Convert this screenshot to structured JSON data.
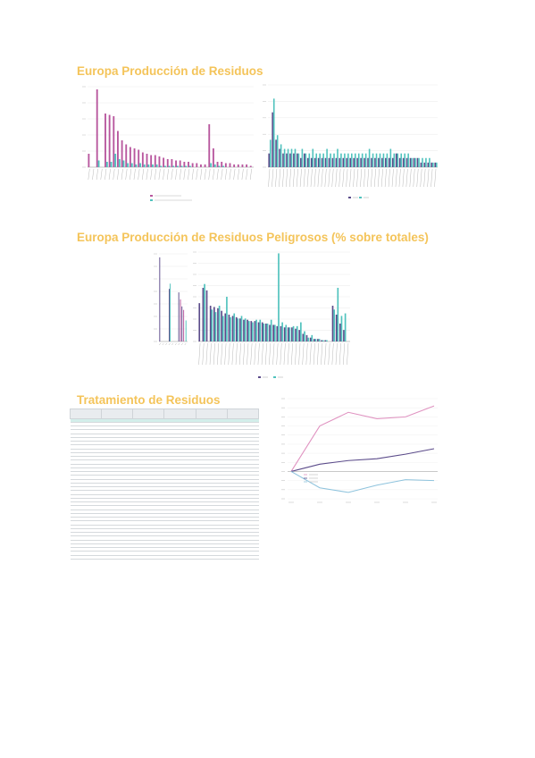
{
  "headings": {
    "h1": "Europa Producción de Residuos",
    "h2": "Europa Producción de Residuos Peligrosos (% sobre totales)",
    "h3": "Tratamiento de Residuos"
  },
  "colors": {
    "heading": "#f4c45a",
    "magenta": "#b8579e",
    "teal": "#4fc2bd",
    "purple": "#5b4b8a",
    "pink": "#e093c1",
    "blue": "#8ec3dd"
  },
  "chart_data": [
    {
      "type": "bar",
      "categories": [
        "",
        "",
        "",
        "",
        "",
        "",
        "",
        "",
        "",
        "",
        "",
        "",
        "",
        "",
        "",
        "",
        "",
        "",
        "",
        "",
        "",
        "",
        "",
        "",
        "",
        "",
        "",
        "",
        "",
        "",
        "",
        "",
        "",
        "",
        "",
        "",
        "",
        "",
        "",
        ""
      ],
      "series": [
        {
          "name": "",
          "values": [
            10,
            0,
            58,
            0,
            40,
            39,
            38,
            27,
            20,
            17,
            15,
            14,
            13,
            11,
            10,
            9,
            9,
            8,
            7,
            6,
            6,
            5,
            5,
            4,
            4,
            3,
            3,
            2,
            2,
            32,
            14,
            4,
            4,
            3,
            3,
            2,
            2,
            2,
            2,
            1
          ]
        },
        {
          "name": "",
          "values": [
            0,
            0,
            5,
            0,
            4,
            4,
            10,
            6,
            5,
            3,
            3,
            2,
            3,
            2,
            2,
            2,
            2,
            1,
            1,
            1,
            1,
            1,
            1,
            1,
            1,
            0,
            0,
            0,
            0,
            3,
            2,
            1,
            1,
            0,
            0,
            0,
            0,
            0,
            0,
            0
          ]
        }
      ],
      "legend": [
        "",
        ""
      ],
      "ylim": [
        0,
        60
      ]
    },
    {
      "type": "bar",
      "categories": [
        "",
        "",
        "",
        "",
        "",
        "",
        "",
        "",
        "",
        "",
        "",
        "",
        "",
        "",
        "",
        "",
        "",
        "",
        "",
        "",
        "",
        "",
        "",
        "",
        "",
        "",
        "",
        "",
        "",
        "",
        "",
        "",
        "",
        "",
        "",
        "",
        "",
        "",
        "",
        "",
        "",
        "",
        "",
        "",
        "",
        "",
        "",
        ""
      ],
      "series": [
        {
          "name": "",
          "values": [
            3,
            12,
            6,
            4,
            3,
            3,
            3,
            3,
            3,
            2,
            3,
            2,
            2,
            2,
            2,
            2,
            2,
            2,
            2,
            2,
            2,
            2,
            2,
            2,
            2,
            2,
            2,
            2,
            2,
            2,
            2,
            2,
            2,
            2,
            2,
            2,
            3,
            2,
            2,
            2,
            2,
            2,
            2,
            1,
            1,
            1,
            1,
            1
          ]
        },
        {
          "name": "",
          "values": [
            6,
            15,
            7,
            5,
            4,
            4,
            4,
            4,
            3,
            4,
            3,
            3,
            4,
            3,
            3,
            3,
            4,
            3,
            3,
            4,
            3,
            3,
            3,
            3,
            3,
            3,
            3,
            3,
            4,
            3,
            3,
            3,
            3,
            3,
            4,
            3,
            3,
            3,
            3,
            3,
            2,
            2,
            2,
            2,
            2,
            2,
            1,
            1
          ]
        }
      ],
      "legend": [
        "",
        ""
      ],
      "ylim": [
        0,
        18
      ]
    },
    {
      "type": "bar",
      "categories": [
        "",
        "",
        "",
        "",
        "",
        "",
        "",
        "",
        ""
      ],
      "series": [
        {
          "name": "",
          "values": [
            48,
            0,
            0,
            30,
            0,
            0,
            28,
            20,
            0
          ]
        },
        {
          "name": "",
          "values": [
            0,
            0,
            0,
            33,
            0,
            0,
            0,
            0,
            12
          ]
        },
        {
          "name": "",
          "values": [
            0,
            0,
            0,
            0,
            0,
            0,
            24,
            18,
            0
          ]
        }
      ],
      "ylim": [
        0,
        50
      ]
    },
    {
      "type": "bar",
      "categories": [
        "",
        "",
        "",
        "",
        "",
        "",
        "",
        "",
        "",
        "",
        "",
        "",
        "",
        "",
        "",
        "",
        "",
        "",
        "",
        "",
        "",
        "",
        "",
        "",
        "",
        "",
        "",
        "",
        "",
        "",
        "",
        "",
        "",
        "",
        "",
        "",
        "",
        "",
        "",
        "",
        ""
      ],
      "series": [
        {
          "name": "",
          "values": [
            30,
            42,
            40,
            28,
            27,
            26,
            24,
            22,
            21,
            20,
            19,
            18,
            17,
            17,
            16,
            16,
            15,
            15,
            14,
            13,
            13,
            12,
            12,
            11,
            11,
            11,
            10,
            9,
            6,
            5,
            3,
            2,
            2,
            1,
            1,
            0,
            28,
            21,
            14,
            9,
            0
          ]
        },
        {
          "name": "",
          "values": [
            0,
            45,
            0,
            25,
            23,
            28,
            20,
            35,
            19,
            22,
            18,
            20,
            18,
            16,
            15,
            17,
            17,
            14,
            14,
            17,
            13,
            69,
            15,
            13,
            11,
            12,
            12,
            15,
            8,
            3,
            5,
            2,
            2,
            1,
            1,
            0,
            25,
            42,
            20,
            22,
            0
          ]
        }
      ],
      "legend": [
        "",
        ""
      ],
      "ylim": [
        0,
        70
      ]
    },
    {
      "type": "line",
      "x": [
        "",
        "",
        "",
        "",
        "",
        ""
      ],
      "series": [
        {
          "name": "",
          "values": [
            100,
            150,
            165,
            158,
            160,
            172
          ]
        },
        {
          "name": "",
          "values": [
            100,
            108,
            112,
            114,
            119,
            125
          ]
        },
        {
          "name": "",
          "values": [
            100,
            82,
            77,
            85,
            91,
            90
          ]
        }
      ],
      "ylim": [
        70,
        180
      ],
      "legend_position": "bottom-left"
    }
  ],
  "table": {
    "headers": [
      "",
      "",
      "",
      "",
      "",
      ""
    ],
    "rows": [
      [
        "",
        "",
        "",
        "",
        "",
        ""
      ],
      [
        "",
        "",
        "",
        "",
        "",
        ""
      ],
      [
        "",
        "",
        "",
        "",
        "",
        ""
      ],
      [
        "",
        "",
        "",
        "",
        "",
        ""
      ],
      [
        "",
        "",
        "",
        "",
        "",
        ""
      ],
      [
        "",
        "",
        "",
        "",
        "",
        ""
      ],
      [
        "",
        "",
        "",
        "",
        "",
        ""
      ],
      [
        "",
        "",
        "",
        "",
        "",
        ""
      ],
      [
        "",
        "",
        "",
        "",
        "",
        ""
      ],
      [
        "",
        "",
        "",
        "",
        "",
        ""
      ],
      [
        "",
        "",
        "",
        "",
        "",
        ""
      ],
      [
        "",
        "",
        "",
        "",
        "",
        ""
      ],
      [
        "",
        "",
        "",
        "",
        "",
        ""
      ],
      [
        "",
        "",
        "",
        "",
        "",
        ""
      ],
      [
        "",
        "",
        "",
        "",
        "",
        ""
      ],
      [
        "",
        "",
        "",
        "",
        "",
        ""
      ],
      [
        "",
        "",
        "",
        "",
        "",
        ""
      ],
      [
        "",
        "",
        "",
        "",
        "",
        ""
      ],
      [
        "",
        "",
        "",
        "",
        "",
        ""
      ],
      [
        "",
        "",
        "",
        "",
        "",
        ""
      ],
      [
        "",
        "",
        "",
        "",
        "",
        ""
      ],
      [
        "",
        "",
        "",
        "",
        "",
        ""
      ],
      [
        "",
        "",
        "",
        "",
        "",
        ""
      ],
      [
        "",
        "",
        "",
        "",
        "",
        ""
      ],
      [
        "",
        "",
        "",
        "",
        "",
        ""
      ],
      [
        "",
        "",
        "",
        "",
        "",
        ""
      ],
      [
        "",
        "",
        "",
        "",
        "",
        ""
      ],
      [
        "",
        "",
        "",
        "",
        "",
        ""
      ],
      [
        "",
        "",
        "",
        "",
        "",
        ""
      ],
      [
        "",
        "",
        "",
        "",
        "",
        ""
      ],
      [
        "",
        "",
        "",
        "",
        "",
        ""
      ],
      [
        "",
        "",
        "",
        "",
        "",
        ""
      ],
      [
        "",
        "",
        "",
        "",
        "",
        ""
      ],
      [
        "",
        "",
        "",
        "",
        "",
        ""
      ],
      [
        "",
        "",
        "",
        "",
        "",
        ""
      ],
      [
        "",
        "",
        "",
        "",
        "",
        ""
      ],
      [
        "",
        "",
        "",
        "",
        "",
        ""
      ]
    ],
    "note1": "",
    "note2": ""
  }
}
